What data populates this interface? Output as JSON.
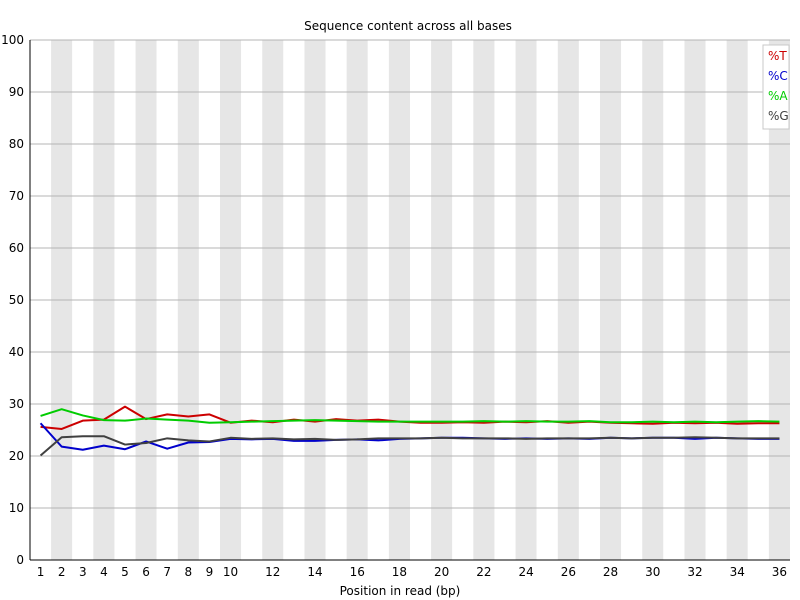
{
  "chart_data": {
    "type": "line",
    "title": "Sequence content across all bases",
    "xlabel": "Position in read (bp)",
    "ylabel": "",
    "ylim": [
      0,
      100
    ],
    "yticks": [
      0,
      10,
      20,
      30,
      40,
      50,
      60,
      70,
      80,
      90,
      100
    ],
    "x": [
      1,
      2,
      3,
      4,
      5,
      6,
      7,
      8,
      9,
      10,
      11,
      12,
      13,
      14,
      15,
      16,
      17,
      18,
      19,
      20,
      21,
      22,
      23,
      24,
      25,
      26,
      27,
      28,
      29,
      30,
      31,
      32,
      33,
      34,
      35,
      36
    ],
    "xtick_labels": [
      "1",
      "2",
      "3",
      "4",
      "5",
      "6",
      "7",
      "8",
      "9",
      "10",
      "12",
      "14",
      "16",
      "18",
      "20",
      "22",
      "24",
      "26",
      "28",
      "30",
      "32",
      "34",
      "36"
    ],
    "grid": true,
    "legend_position": "top-right",
    "background_bands": {
      "colors": [
        "#ffffff",
        "#e6e6e6"
      ]
    },
    "series": [
      {
        "name": "%T",
        "color": "#cc0000",
        "values": [
          25.6,
          25.2,
          26.8,
          27.0,
          29.5,
          27.1,
          28.0,
          27.6,
          28.0,
          26.4,
          26.8,
          26.5,
          27.0,
          26.6,
          27.1,
          26.8,
          27.0,
          26.6,
          26.4,
          26.4,
          26.5,
          26.4,
          26.6,
          26.5,
          26.7,
          26.4,
          26.6,
          26.4,
          26.3,
          26.2,
          26.4,
          26.3,
          26.4,
          26.2,
          26.3,
          26.3
        ]
      },
      {
        "name": "%C",
        "color": "#0000cc",
        "values": [
          26.3,
          21.8,
          21.2,
          22.0,
          21.3,
          22.8,
          21.4,
          22.6,
          22.7,
          23.3,
          23.2,
          23.3,
          22.9,
          22.9,
          23.1,
          23.2,
          23.0,
          23.3,
          23.4,
          23.5,
          23.5,
          23.4,
          23.3,
          23.4,
          23.3,
          23.4,
          23.3,
          23.5,
          23.4,
          23.5,
          23.5,
          23.3,
          23.5,
          23.4,
          23.3,
          23.3
        ]
      },
      {
        "name": "%A",
        "color": "#00cc00",
        "values": [
          27.7,
          29.0,
          27.8,
          26.9,
          26.8,
          27.2,
          27.0,
          26.8,
          26.4,
          26.5,
          26.6,
          26.7,
          26.8,
          26.9,
          26.8,
          26.7,
          26.6,
          26.6,
          26.6,
          26.6,
          26.6,
          26.7,
          26.6,
          26.7,
          26.6,
          26.6,
          26.7,
          26.5,
          26.5,
          26.6,
          26.5,
          26.6,
          26.5,
          26.6,
          26.7,
          26.6
        ]
      },
      {
        "name": "%G",
        "color": "#404040",
        "values": [
          20.1,
          23.6,
          23.8,
          23.8,
          22.2,
          22.5,
          23.4,
          23.0,
          22.8,
          23.5,
          23.3,
          23.4,
          23.2,
          23.3,
          23.1,
          23.2,
          23.4,
          23.4,
          23.4,
          23.5,
          23.4,
          23.4,
          23.4,
          23.3,
          23.4,
          23.4,
          23.4,
          23.5,
          23.4,
          23.5,
          23.5,
          23.6,
          23.5,
          23.4,
          23.4,
          23.4
        ]
      }
    ]
  }
}
